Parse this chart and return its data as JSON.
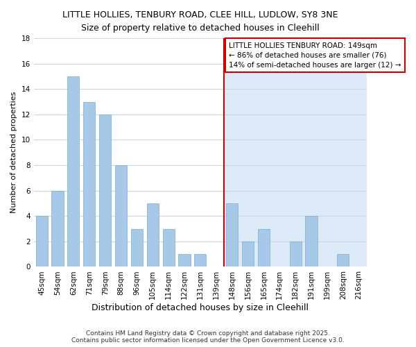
{
  "title": "LITTLE HOLLIES, TENBURY ROAD, CLEE HILL, LUDLOW, SY8 3NE",
  "subtitle": "Size of property relative to detached houses in Cleehill",
  "xlabel": "Distribution of detached houses by size in Cleehill",
  "ylabel": "Number of detached properties",
  "footer": "Contains HM Land Registry data © Crown copyright and database right 2025.\nContains public sector information licensed under the Open Government Licence v3.0.",
  "categories": [
    "45sqm",
    "54sqm",
    "62sqm",
    "71sqm",
    "79sqm",
    "88sqm",
    "96sqm",
    "105sqm",
    "114sqm",
    "122sqm",
    "131sqm",
    "139sqm",
    "148sqm",
    "156sqm",
    "165sqm",
    "174sqm",
    "182sqm",
    "191sqm",
    "199sqm",
    "208sqm",
    "216sqm"
  ],
  "values": [
    4,
    6,
    15,
    13,
    12,
    8,
    3,
    5,
    3,
    1,
    1,
    0,
    5,
    2,
    3,
    0,
    2,
    4,
    0,
    1,
    0
  ],
  "highlight_index": 12,
  "bar_color": "#a8c8e8",
  "bar_edge_color": "#7aaed0",
  "highlight_region_color": "#dce9f7",
  "highlight_line_color": "#cc0000",
  "annotation_box_color": "#ffffff",
  "annotation_border_color": "#cc0000",
  "annotation_line1": "LITTLE HOLLIES TENBURY ROAD: 149sqm",
  "annotation_line2": "← 86% of detached houses are smaller (76)",
  "annotation_line3": "14% of semi-detached houses are larger (12) →",
  "ylim": [
    0,
    18
  ],
  "yticks": [
    0,
    2,
    4,
    6,
    8,
    10,
    12,
    14,
    16,
    18
  ],
  "bg_color": "#ffffff",
  "grid_color": "#c8d8e8",
  "title_fontsize": 9,
  "subtitle_fontsize": 9,
  "xlabel_fontsize": 9,
  "ylabel_fontsize": 8,
  "tick_fontsize": 7.5,
  "annotation_fontsize": 7.5,
  "footer_fontsize": 6.5
}
